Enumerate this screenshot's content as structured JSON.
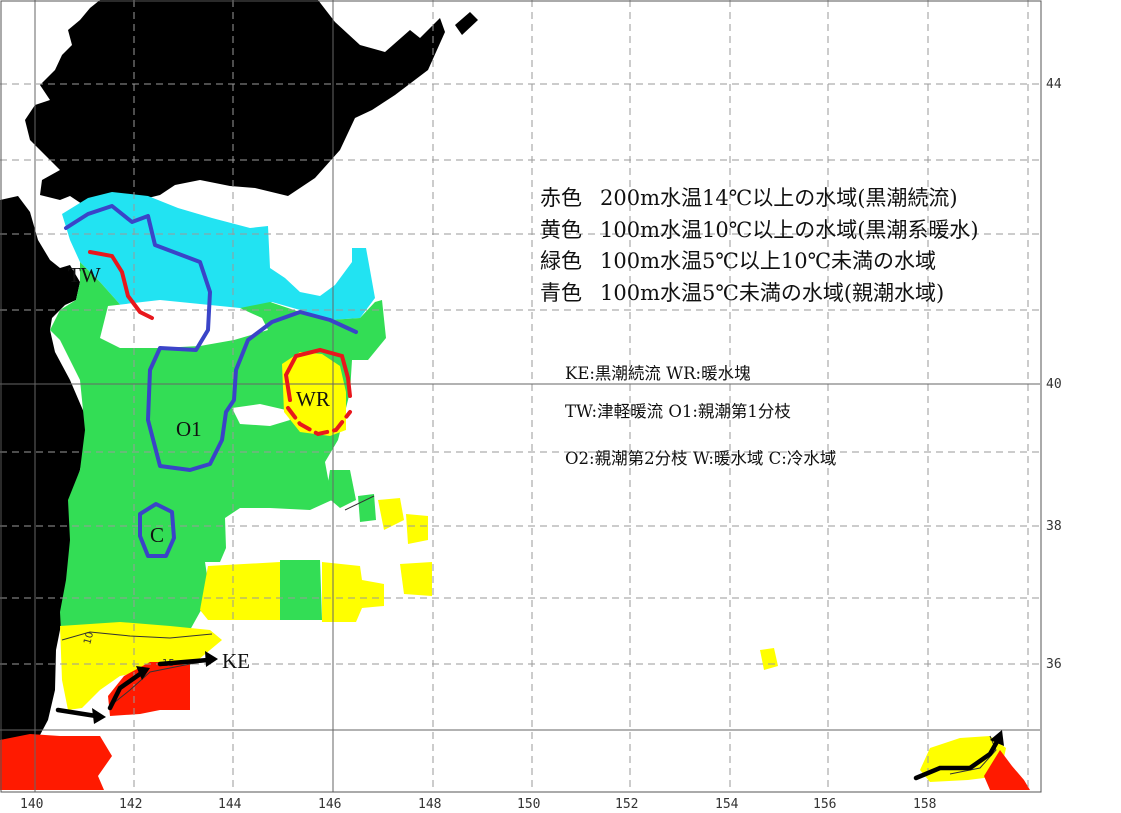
{
  "legend": {
    "red": {
      "tag": "赤色",
      "text": "200m水温14℃以上の水域(黒潮続流)"
    },
    "yellow": {
      "tag": "黄色",
      "text": "100m水温10℃以上の水域(黒潮系暖水)"
    },
    "green": {
      "tag": "緑色",
      "text": "100m水温5℃以上10℃未満の水域"
    },
    "blue": {
      "tag": "青色",
      "text": "100m水温5℃未満の水域(親潮水域)"
    }
  },
  "abbreviations": [
    "KE:黒潮続流  WR:暖水塊",
    "TW:津軽暖流  O1:親潮第1分枝",
    "O2:親潮第2分枝  W:暖水域   C:冷水域"
  ],
  "region_labels": {
    "tw": "TW",
    "o1": "O1",
    "wr": "WR",
    "c": "C",
    "ke": "KE"
  },
  "contour_labels": {
    "ten": "10",
    "fifteen": "15"
  },
  "axes": {
    "x_ticks": [
      "140",
      "142",
      "144",
      "146",
      "148",
      "150",
      "152",
      "154",
      "156",
      "158"
    ],
    "y_ticks": [
      "44",
      "40",
      "38",
      "36"
    ]
  },
  "colors": {
    "land": "#000000",
    "red_zone": "#ff1a00",
    "yellow_zone": "#ffff00",
    "green_zone": "#33dd55",
    "cyan_zone": "#22e3f2",
    "blue_line": "#3a44c8",
    "red_line": "#e8171c",
    "arrow": "#000000"
  }
}
